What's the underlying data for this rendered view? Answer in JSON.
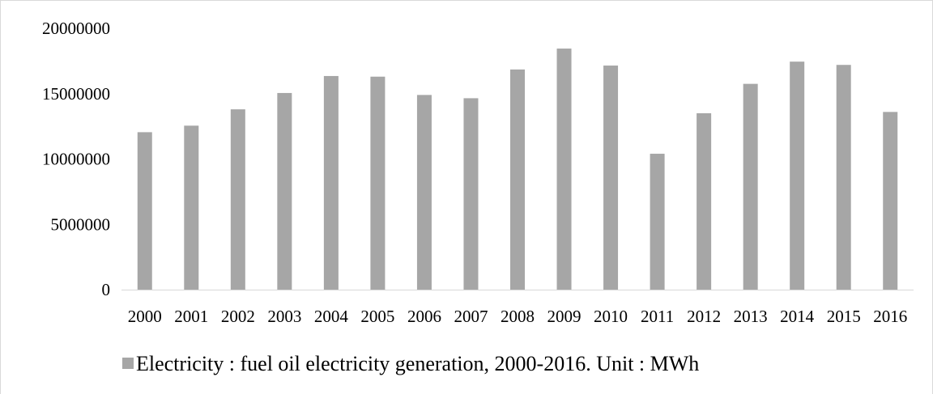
{
  "chart_data": {
    "type": "bar",
    "title": "",
    "xlabel": "",
    "ylabel": "",
    "categories": [
      "2000",
      "2001",
      "2002",
      "2003",
      "2004",
      "2005",
      "2006",
      "2007",
      "2008",
      "2009",
      "2010",
      "2011",
      "2012",
      "2013",
      "2014",
      "2015",
      "2016"
    ],
    "series": [
      {
        "name": "Electricity : fuel oil electricity generation, 2000-2016. Unit : MWh",
        "color": "#a6a6a6",
        "values": [
          12050000,
          12550000,
          13800000,
          15050000,
          16350000,
          16300000,
          14900000,
          14650000,
          16850000,
          18450000,
          17150000,
          10400000,
          13500000,
          15750000,
          17450000,
          17200000,
          13600000
        ]
      }
    ],
    "ylim": [
      0,
      20000000
    ],
    "yticks": [
      "0",
      "5000000",
      "10000000",
      "15000000",
      "20000000"
    ],
    "grid": false,
    "legend_position": "bottom-left",
    "colors": {
      "bar": "#a6a6a6",
      "axis": "#d9d9d9",
      "text": "#000000"
    }
  }
}
